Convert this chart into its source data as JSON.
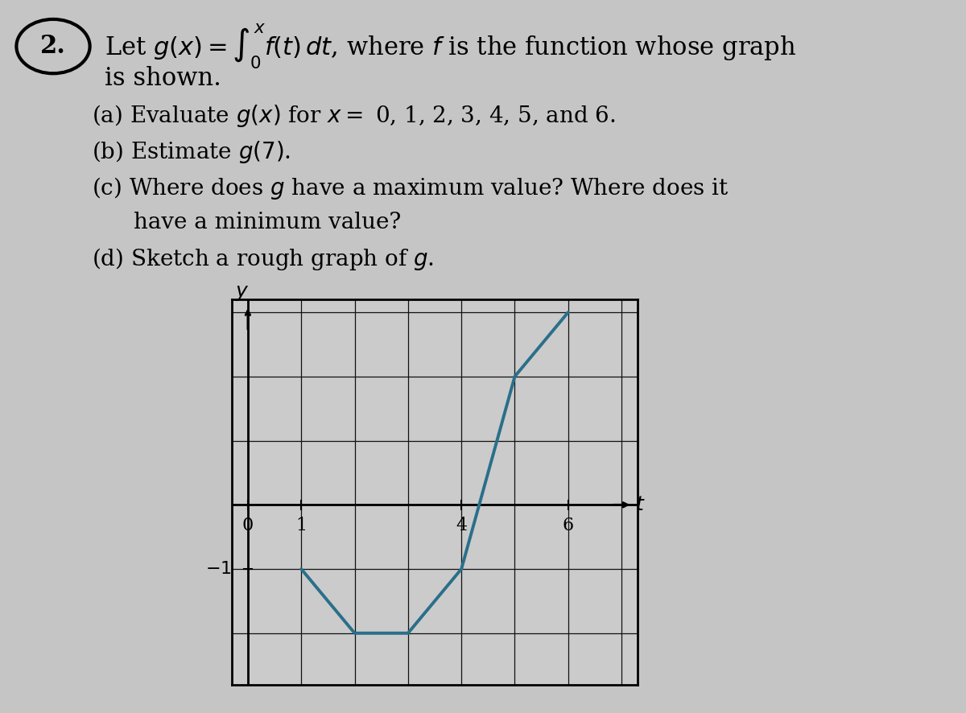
{
  "bg_color": "#c5c5c5",
  "graph": {
    "xlim": [
      -0.3,
      7.3
    ],
    "ylim": [
      -2.8,
      3.2
    ],
    "curve_x": [
      1,
      2,
      3,
      4,
      5,
      6
    ],
    "curve_y": [
      -1,
      -2,
      -2,
      -1,
      2,
      3
    ],
    "curve_color": "#2a6f8a",
    "curve_linewidth": 2.8,
    "grid_color": "#111111",
    "grid_linewidth": 0.9,
    "paper_color": "#cbcbcb",
    "axis_linewidth": 2.0
  },
  "font_size_title": 22,
  "font_size_item": 20,
  "font_size_graph": 16
}
